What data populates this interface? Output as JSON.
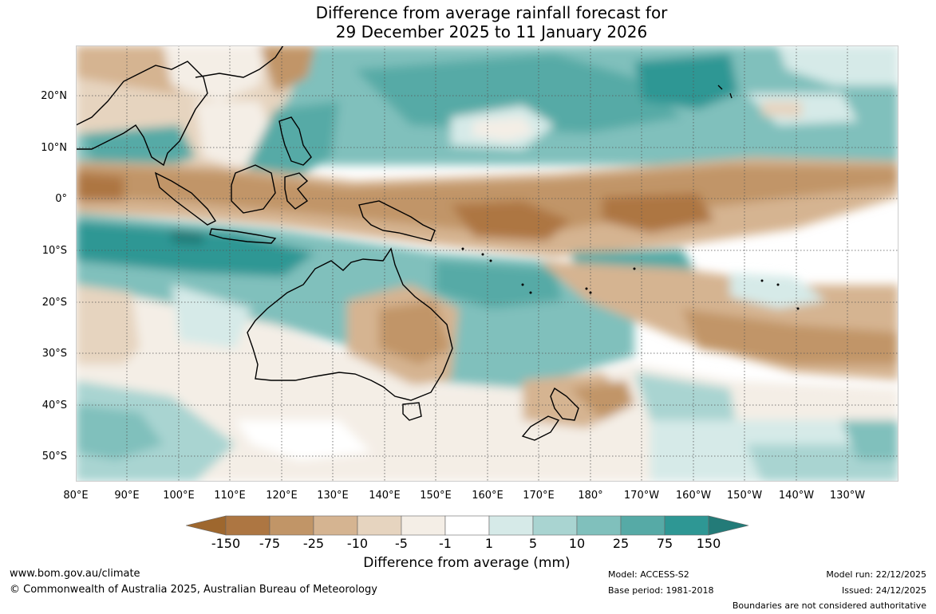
{
  "title": {
    "line1": "Difference from average rainfall forecast for",
    "line2": "29 December 2025 to 11 January 2026"
  },
  "map": {
    "lat_labels": [
      "20°N",
      "10°N",
      "0°",
      "10°S",
      "20°S",
      "30°S",
      "40°S",
      "50°S"
    ],
    "lon_labels": [
      "80°E",
      "90°E",
      "100°E",
      "110°E",
      "120°E",
      "130°E",
      "140°E",
      "150°E",
      "160°E",
      "170°E",
      "180°",
      "170°W",
      "160°W",
      "150°W",
      "140°W",
      "130°W"
    ]
  },
  "legend": {
    "title": "Difference from average (mm)",
    "tick_labels": [
      "-150",
      "-75",
      "-25",
      "-10",
      "-5",
      "-1",
      "1",
      "5",
      "10",
      "25",
      "75",
      "150"
    ],
    "colors": [
      "#9e672e",
      "#ad7642",
      "#c19567",
      "#d5b491",
      "#e6d4bf",
      "#f4eee6",
      "#ffffff",
      "#d6eae8",
      "#a9d4d1",
      "#80c0bc",
      "#56aaa6",
      "#2e9794",
      "#237b78"
    ]
  },
  "footer": {
    "website": "www.bom.gov.au/climate",
    "copyright": "© Commonwealth of Australia 2025, Australian Bureau of Meteorology",
    "model": "Model: ACCESS-S2",
    "base_period": "Base period: 1981-2018",
    "model_run": "Model run: 22/12/2025",
    "issued": "Issued: 24/12/2025",
    "boundaries": "Boundaries are not considered authoritative"
  }
}
